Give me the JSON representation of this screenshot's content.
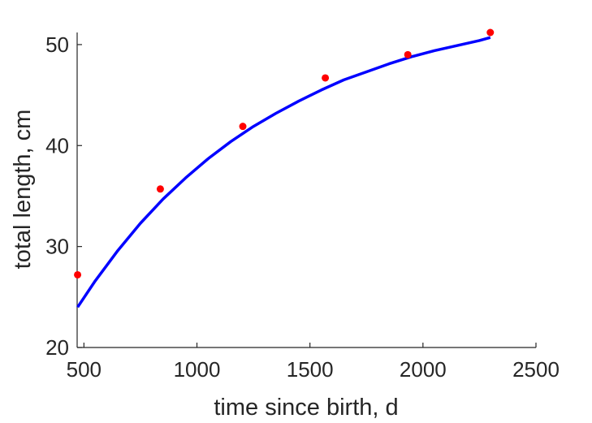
{
  "chart_data": {
    "type": "scatter",
    "title": "",
    "xlabel": "time since birth, d",
    "ylabel": "total length, cm",
    "xlim": [
      470,
      2500
    ],
    "ylim": [
      20,
      51.2
    ],
    "xticks": [
      500,
      1000,
      1500,
      2000,
      2500
    ],
    "yticks": [
      20,
      30,
      40,
      50
    ],
    "grid": false,
    "series": [
      {
        "kind": "scatter",
        "color": "#ff0000",
        "x": [
          472,
          838,
          1203,
          1568,
          1933,
          2298
        ],
        "y": [
          27.2,
          35.7,
          41.9,
          46.7,
          49.0,
          51.2
        ]
      },
      {
        "kind": "line",
        "color": "#0000ff",
        "x": [
          472,
          550,
          650,
          750,
          850,
          950,
          1050,
          1150,
          1250,
          1350,
          1450,
          1550,
          1650,
          1750,
          1850,
          1950,
          2050,
          2150,
          2250,
          2298
        ],
        "y": [
          24.0,
          26.6,
          29.6,
          32.3,
          34.7,
          36.8,
          38.7,
          40.4,
          41.9,
          43.2,
          44.4,
          45.5,
          46.5,
          47.3,
          48.1,
          48.8,
          49.4,
          49.9,
          50.4,
          50.7
        ]
      }
    ]
  }
}
